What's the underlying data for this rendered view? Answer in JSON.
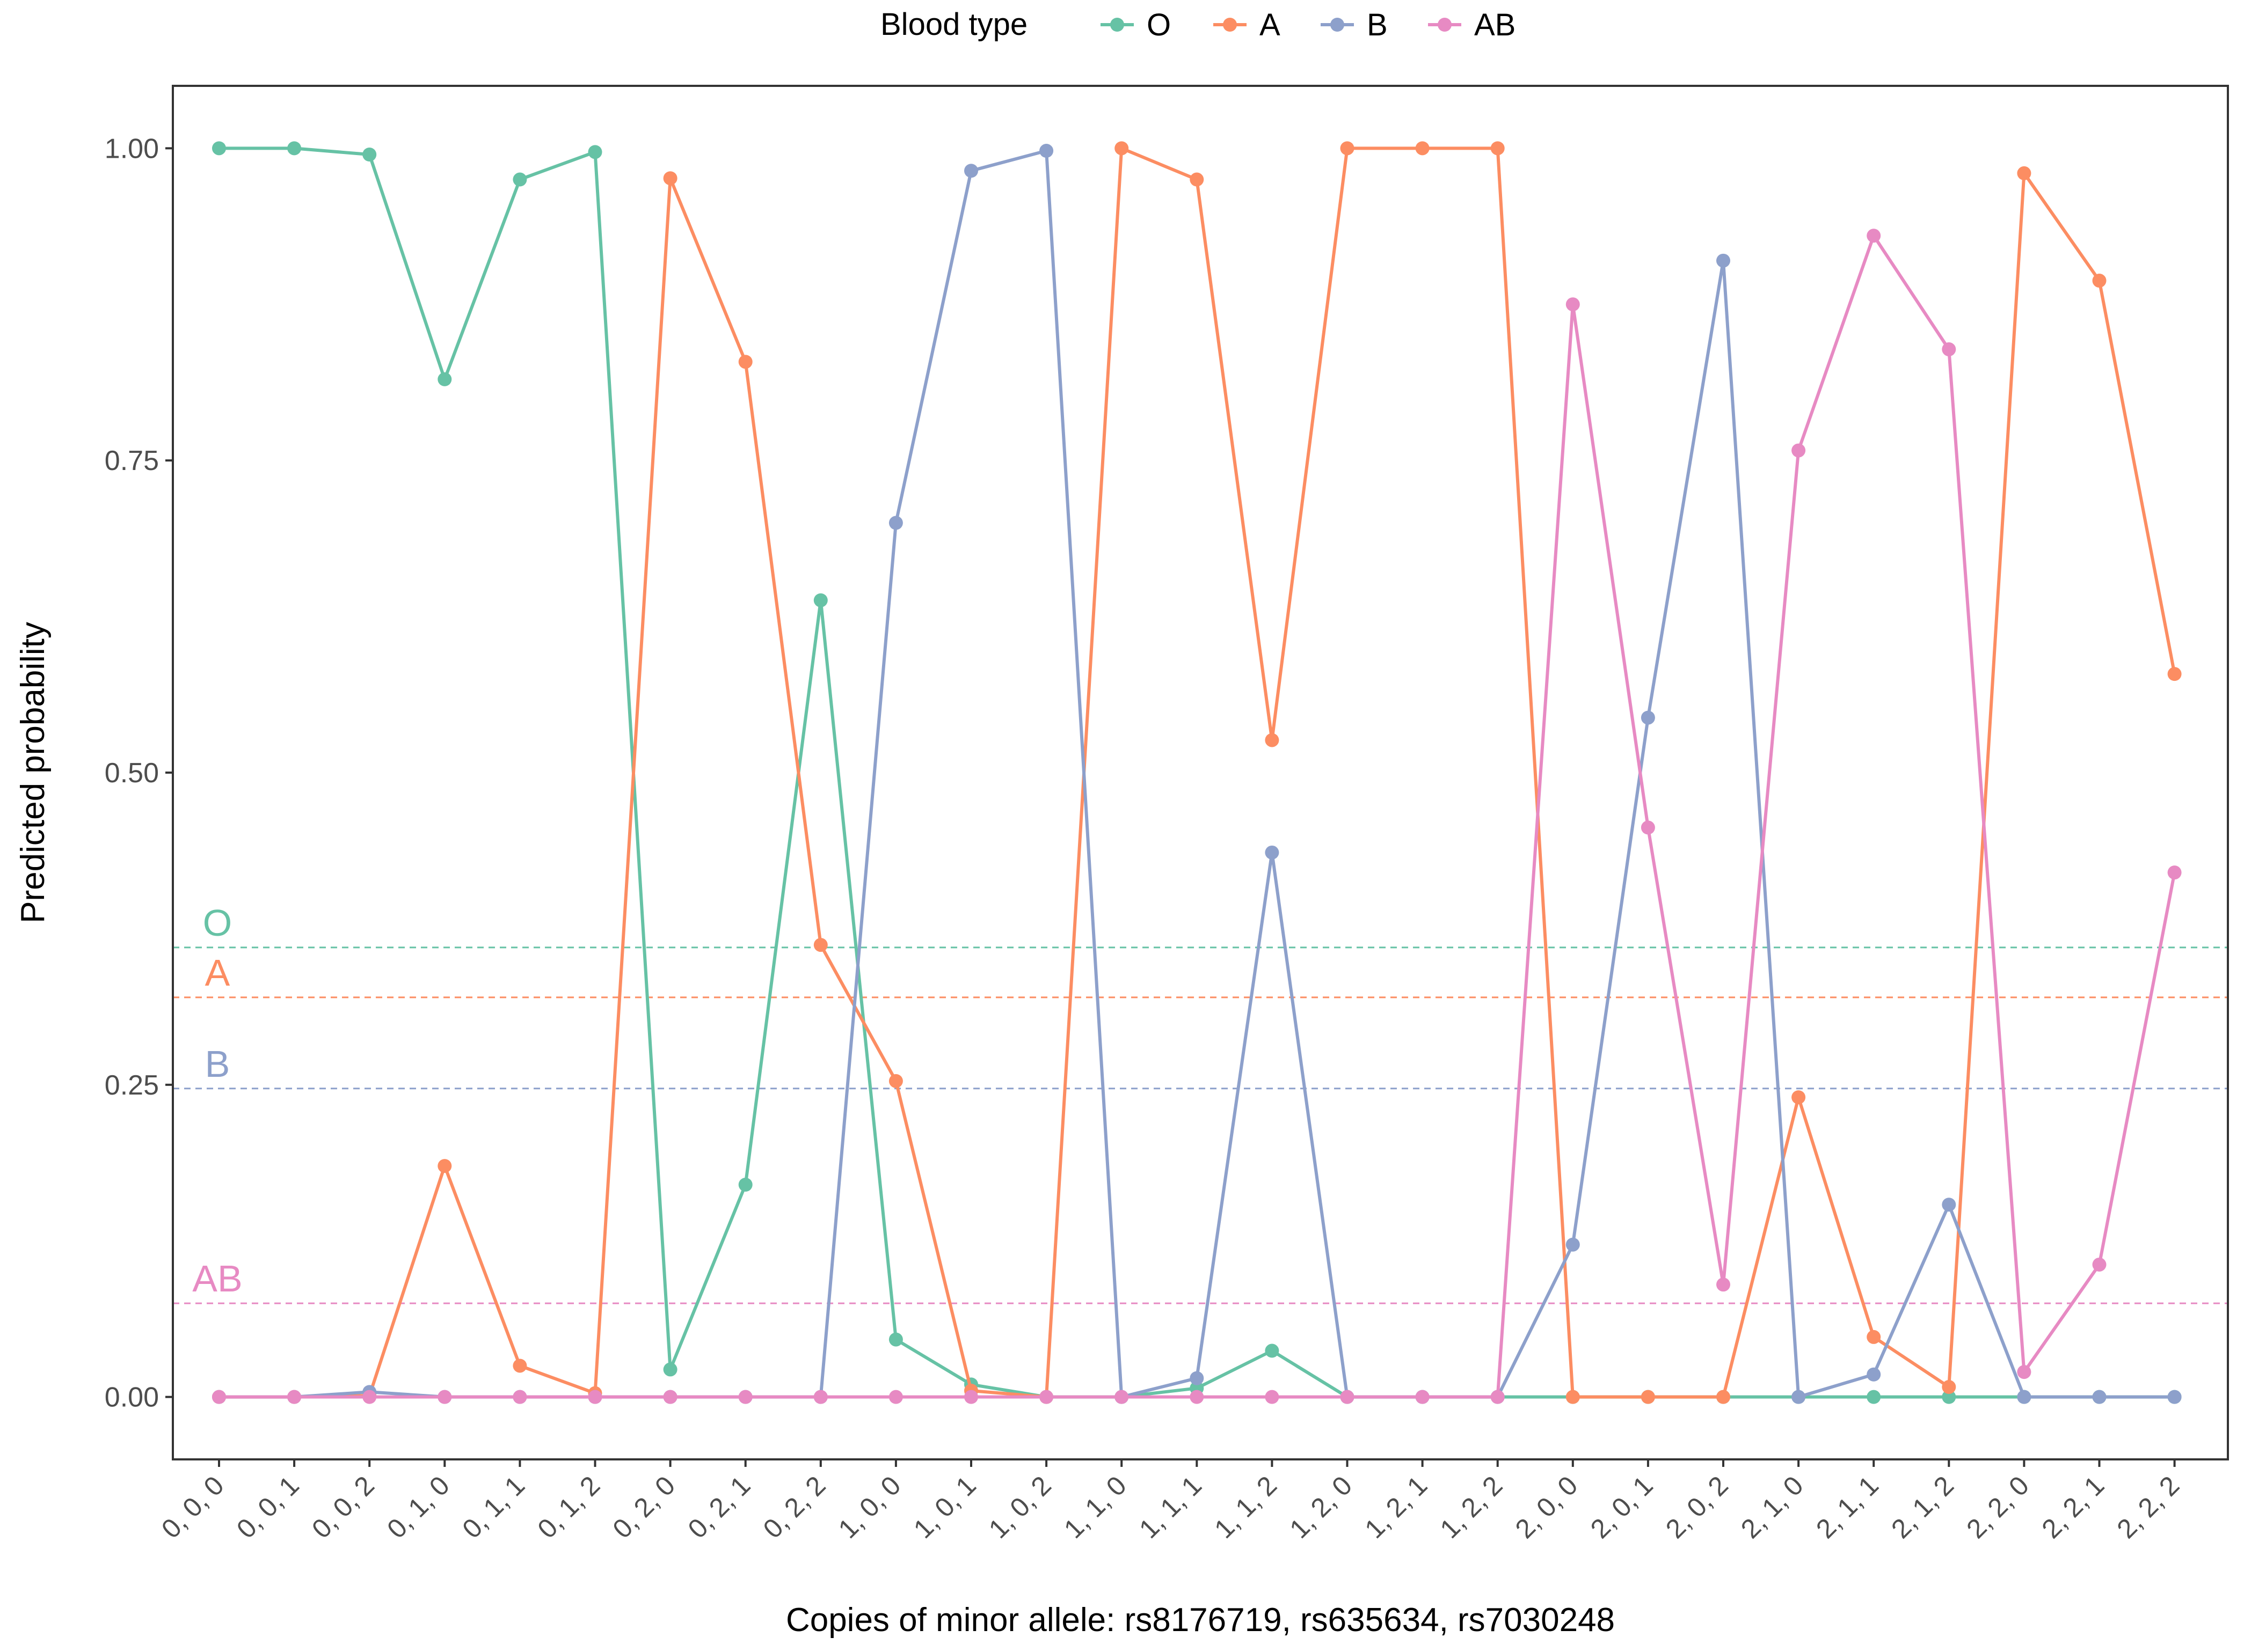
{
  "chart_data": {
    "type": "line",
    "xlabel": "Copies of minor allele: rs8176719, rs635634, rs7030248",
    "ylabel": "Predicted probability",
    "ylim": [
      -0.05,
      1.05
    ],
    "yticks": [
      0.0,
      0.25,
      0.5,
      0.75,
      1.0
    ],
    "ytick_labels": [
      "0.00",
      "0.25",
      "0.50",
      "0.75",
      "1.00"
    ],
    "grid": false,
    "legend": {
      "title": "Blood type",
      "position": "top"
    },
    "categories": [
      "0, 0, 0",
      "0, 0, 1",
      "0, 0, 2",
      "0, 1, 0",
      "0, 1, 1",
      "0, 1, 2",
      "0, 2, 0",
      "0, 2, 1",
      "0, 2, 2",
      "1, 0, 0",
      "1, 0, 1",
      "1, 0, 2",
      "1, 1, 0",
      "1, 1, 1",
      "1, 1, 2",
      "1, 2, 0",
      "1, 2, 1",
      "1, 2, 2",
      "2, 0, 0",
      "2, 0, 1",
      "2, 0, 2",
      "2, 1, 0",
      "2, 1, 1",
      "2, 1, 2",
      "2, 2, 0",
      "2, 2, 1",
      "2, 2, 2"
    ],
    "series": [
      {
        "name": "O",
        "color": "#66C2A5",
        "baseline": 0.36,
        "values": [
          1.0,
          1.0,
          0.995,
          0.815,
          0.975,
          0.997,
          0.022,
          0.17,
          0.638,
          0.046,
          0.01,
          0.0,
          0.0,
          0.007,
          0.037,
          0.0,
          0.0,
          0.0,
          0.0,
          0.0,
          0.0,
          0.0,
          0.0,
          0.0,
          0.0,
          0.0,
          0.0
        ]
      },
      {
        "name": "A",
        "color": "#FC8D62",
        "baseline": 0.32,
        "values": [
          0.0,
          0.0,
          0.001,
          0.185,
          0.025,
          0.003,
          0.976,
          0.829,
          0.362,
          0.253,
          0.005,
          0.0,
          1.0,
          0.975,
          0.526,
          1.0,
          1.0,
          1.0,
          0.0,
          0.0,
          0.0,
          0.24,
          0.048,
          0.008,
          0.98,
          0.894,
          0.579
        ]
      },
      {
        "name": "B",
        "color": "#8DA0CB",
        "baseline": 0.247,
        "values": [
          0.0,
          0.0,
          0.004,
          0.0,
          0.0,
          0.0,
          0.0,
          0.0,
          0.0,
          0.7,
          0.982,
          0.998,
          0.0,
          0.015,
          0.436,
          0.0,
          0.0,
          0.0,
          0.122,
          0.544,
          0.91,
          0.0,
          0.018,
          0.154,
          0.0,
          0.0,
          0.0
        ]
      },
      {
        "name": "AB",
        "color": "#E78AC3",
        "baseline": 0.075,
        "values": [
          0.0,
          0.0,
          0.0,
          0.0,
          0.0,
          0.0,
          0.0,
          0.0,
          0.0,
          0.0,
          0.0,
          0.0,
          0.0,
          0.0,
          0.0,
          0.0,
          0.0,
          0.0,
          0.875,
          0.456,
          0.09,
          0.758,
          0.93,
          0.839,
          0.02,
          0.106,
          0.42
        ]
      }
    ]
  }
}
